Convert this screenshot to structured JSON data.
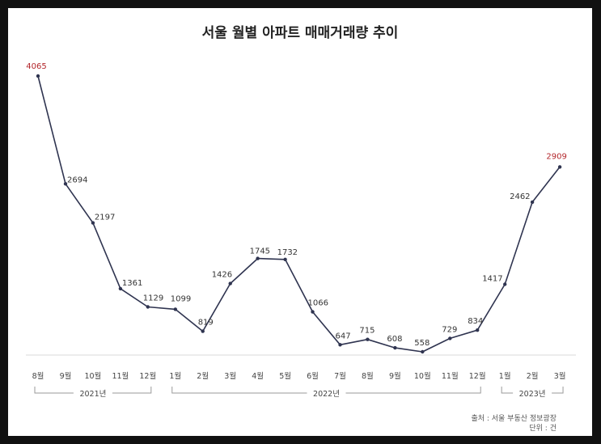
{
  "chart_data": {
    "type": "line",
    "title": "서울 월별 아파트 매매거래량 추이",
    "categories": [
      "8월",
      "9월",
      "10월",
      "11월",
      "12월",
      "1월",
      "2월",
      "3월",
      "4월",
      "5월",
      "6월",
      "7월",
      "8월",
      "9월",
      "10월",
      "11월",
      "12월",
      "1월",
      "2월",
      "3월"
    ],
    "values": [
      4065,
      2694,
      2197,
      1361,
      1129,
      1099,
      819,
      1426,
      1745,
      1732,
      1066,
      647,
      715,
      608,
      558,
      729,
      834,
      1417,
      2462,
      2909
    ],
    "highlighted": [
      0,
      19
    ],
    "year_groups": [
      {
        "label": "2021년",
        "start": 0,
        "end": 4
      },
      {
        "label": "2022년",
        "start": 5,
        "end": 16
      },
      {
        "label": "2023년",
        "start": 17,
        "end": 19
      }
    ],
    "source": "출처 : 서울 부동산 정보광장",
    "unit": "단위 : 건",
    "ylim": [
      0,
      4500
    ],
    "grid": false,
    "colors": {
      "line": "#2f3450",
      "highlight": "#b3262b",
      "text": "#333333",
      "axis": "#d8d8d8"
    }
  }
}
